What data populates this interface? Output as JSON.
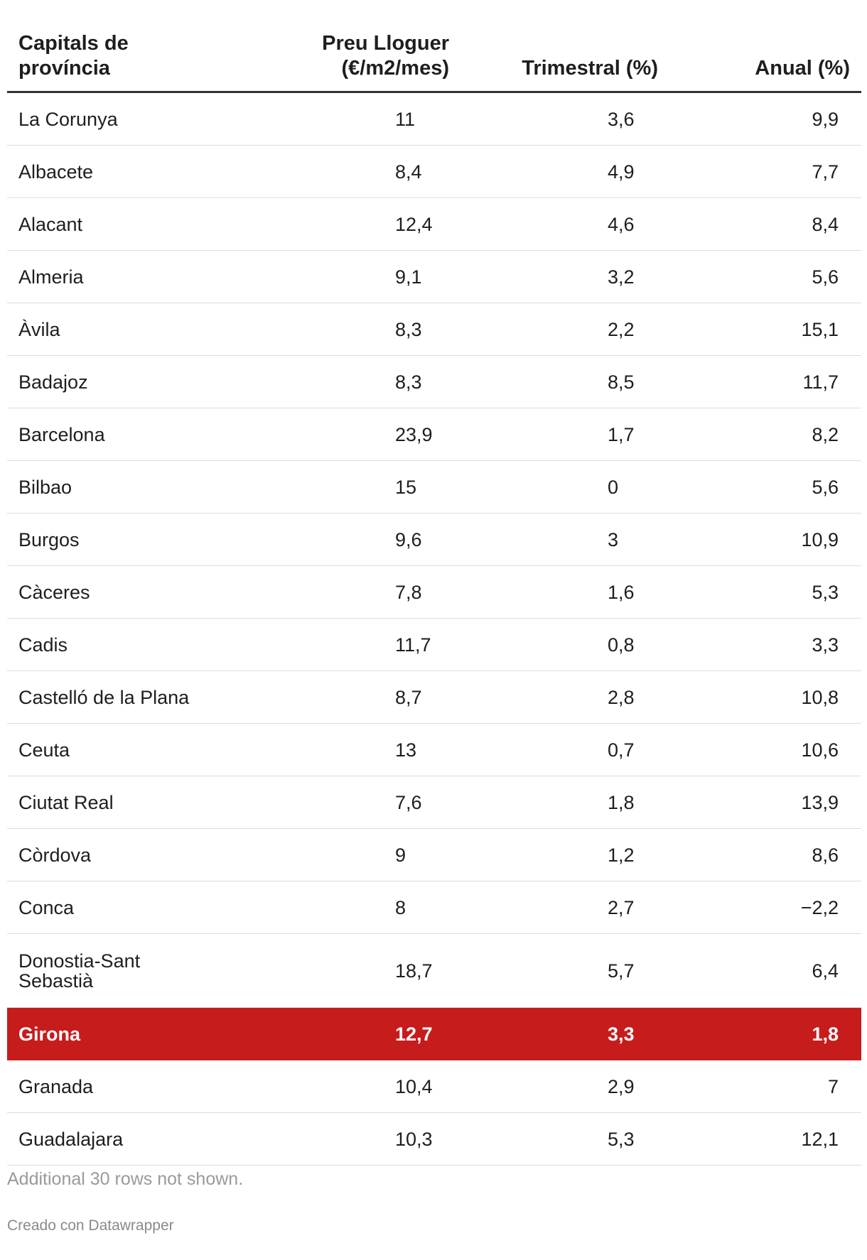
{
  "chart_data": {
    "type": "table",
    "columns": [
      "Capitals de província",
      "Preu Lloguer (€/m2/mes)",
      "Trimestral (%)",
      "Anual (%)"
    ],
    "rows": [
      {
        "name": "La Corunya",
        "price": "11",
        "tri": "3,6",
        "anual": "9,9"
      },
      {
        "name": "Albacete",
        "price": "8,4",
        "tri": "4,9",
        "anual": "7,7"
      },
      {
        "name": "Alacant",
        "price": "12,4",
        "tri": "4,6",
        "anual": "8,4"
      },
      {
        "name": "Almeria",
        "price": "9,1",
        "tri": "3,2",
        "anual": "5,6"
      },
      {
        "name": "Àvila",
        "price": "8,3",
        "tri": "2,2",
        "anual": "15,1"
      },
      {
        "name": "Badajoz",
        "price": "8,3",
        "tri": "8,5",
        "anual": "11,7"
      },
      {
        "name": "Barcelona",
        "price": "23,9",
        "tri": "1,7",
        "anual": "8,2"
      },
      {
        "name": "Bilbao",
        "price": "15",
        "tri": "0",
        "anual": "5,6"
      },
      {
        "name": "Burgos",
        "price": "9,6",
        "tri": "3",
        "anual": "10,9"
      },
      {
        "name": "Càceres",
        "price": "7,8",
        "tri": "1,6",
        "anual": "5,3"
      },
      {
        "name": "Cadis",
        "price": "11,7",
        "tri": "0,8",
        "anual": "3,3"
      },
      {
        "name": "Castelló de la Plana",
        "price": "8,7",
        "tri": "2,8",
        "anual": "10,8"
      },
      {
        "name": "Ceuta",
        "price": "13",
        "tri": "0,7",
        "anual": "10,6"
      },
      {
        "name": "Ciutat Real",
        "price": "7,6",
        "tri": "1,8",
        "anual": "13,9"
      },
      {
        "name": "Còrdova",
        "price": "9",
        "tri": "1,2",
        "anual": "8,6"
      },
      {
        "name": "Conca",
        "price": "8",
        "tri": "2,7",
        "anual": "−2,2"
      },
      {
        "name": "Donostia-Sant Sebastià",
        "price": "18,7",
        "tri": "5,7",
        "anual": "6,4"
      },
      {
        "name": "Girona",
        "price": "12,7",
        "tri": "3,3",
        "anual": "1,8",
        "highlight": true
      },
      {
        "name": "Granada",
        "price": "10,4",
        "tri": "2,9",
        "anual": "7"
      },
      {
        "name": "Guadalajara",
        "price": "10,3",
        "tri": "5,3",
        "anual": "12,1"
      }
    ],
    "highlight_color": "#c71c1c"
  },
  "header": {
    "name_line1": "Capitals de",
    "name_line2": "província",
    "price_line1": "Preu Lloguer",
    "price_line2": "(€/m2/mes)",
    "tri": "Trimestral (%)",
    "anual": "Anual (%)"
  },
  "footer": {
    "note": "Additional 30 rows not shown.",
    "credit": "Creado con Datawrapper"
  }
}
